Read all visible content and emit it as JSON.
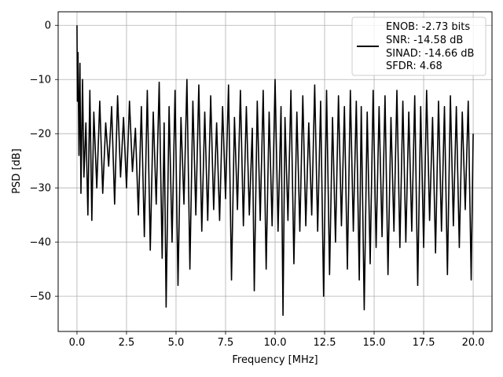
{
  "chart_data": {
    "type": "line",
    "title": "",
    "xlabel": "Frequency [MHz]",
    "ylabel": "PSD [dB]",
    "xlim": [
      -0.95,
      20.95
    ],
    "ylim": [
      -56.5,
      2.5
    ],
    "xticks": [
      0.0,
      2.5,
      5.0,
      7.5,
      10.0,
      12.5,
      15.0,
      17.5,
      20.0
    ],
    "xtick_labels": [
      "0.0",
      "2.5",
      "5.0",
      "7.5",
      "10.0",
      "12.5",
      "15.0",
      "17.5",
      "20.0"
    ],
    "yticks": [
      0,
      -10,
      -20,
      -30,
      -40,
      -50
    ],
    "ytick_labels": [
      "0",
      "−10",
      "−20",
      "−30",
      "−40",
      "−50"
    ],
    "grid": true,
    "legend": {
      "placement": "top-right",
      "lines": [
        "ENOB: -2.73 bits",
        "SNR: -14.58 dB",
        "SINAD: -14.66 dB",
        "SFDR: 4.68"
      ]
    },
    "series": [
      {
        "color": "#000000",
        "x": [
          0.0,
          0.02,
          0.05,
          0.1,
          0.15,
          0.2,
          0.28,
          0.35,
          0.45,
          0.55,
          0.65,
          0.75,
          0.85,
          1.0,
          1.15,
          1.3,
          1.45,
          1.6,
          1.75,
          1.9,
          2.05,
          2.2,
          2.35,
          2.5,
          2.65,
          2.8,
          2.95,
          3.1,
          3.25,
          3.4,
          3.55,
          3.7,
          3.85,
          4.0,
          4.15,
          4.3,
          4.4,
          4.5,
          4.65,
          4.8,
          4.95,
          5.1,
          5.25,
          5.4,
          5.55,
          5.7,
          5.85,
          6.0,
          6.15,
          6.3,
          6.45,
          6.6,
          6.75,
          6.9,
          7.05,
          7.2,
          7.35,
          7.5,
          7.65,
          7.8,
          7.95,
          8.1,
          8.25,
          8.4,
          8.55,
          8.7,
          8.85,
          8.95,
          9.1,
          9.25,
          9.4,
          9.55,
          9.7,
          9.85,
          10.0,
          10.15,
          10.3,
          10.4,
          10.5,
          10.65,
          10.8,
          10.95,
          11.1,
          11.25,
          11.4,
          11.55,
          11.7,
          11.85,
          12.0,
          12.15,
          12.3,
          12.45,
          12.6,
          12.75,
          12.9,
          13.05,
          13.2,
          13.35,
          13.5,
          13.65,
          13.8,
          13.95,
          14.1,
          14.25,
          14.35,
          14.5,
          14.65,
          14.8,
          14.95,
          15.1,
          15.25,
          15.4,
          15.55,
          15.7,
          15.85,
          16.0,
          16.15,
          16.3,
          16.45,
          16.6,
          16.75,
          16.9,
          17.05,
          17.2,
          17.35,
          17.5,
          17.65,
          17.8,
          17.95,
          18.1,
          18.25,
          18.4,
          18.55,
          18.7,
          18.85,
          19.0,
          19.15,
          19.3,
          19.45,
          19.6,
          19.75,
          19.9,
          20.0
        ],
        "y": [
          0.0,
          -14.0,
          -5.0,
          -24.0,
          -7.0,
          -31.0,
          -10.0,
          -28.0,
          -18.0,
          -35.0,
          -12.0,
          -36.0,
          -16.0,
          -30.0,
          -14.0,
          -31.0,
          -18.0,
          -26.0,
          -15.0,
          -33.0,
          -13.0,
          -28.0,
          -17.0,
          -30.0,
          -14.0,
          -27.0,
          -19.0,
          -35.0,
          -15.0,
          -39.0,
          -12.0,
          -41.5,
          -16.0,
          -33.0,
          -10.5,
          -43.0,
          -18.0,
          -52.0,
          -15.0,
          -40.0,
          -12.0,
          -48.0,
          -17.0,
          -33.0,
          -10.0,
          -45.0,
          -14.0,
          -35.0,
          -11.0,
          -38.0,
          -16.0,
          -36.0,
          -13.0,
          -34.0,
          -18.0,
          -36.0,
          -15.0,
          -32.0,
          -11.0,
          -47.0,
          -17.0,
          -34.0,
          -12.0,
          -37.0,
          -15.0,
          -35.0,
          -19.0,
          -49.0,
          -14.0,
          -36.0,
          -12.0,
          -45.0,
          -16.0,
          -37.0,
          -10.0,
          -38.0,
          -15.0,
          -53.5,
          -17.0,
          -36.0,
          -12.0,
          -44.0,
          -16.0,
          -38.0,
          -13.0,
          -37.0,
          -18.0,
          -35.0,
          -11.0,
          -38.0,
          -14.0,
          -50.0,
          -12.0,
          -46.0,
          -17.0,
          -40.0,
          -13.0,
          -37.0,
          -15.0,
          -45.0,
          -12.0,
          -38.0,
          -14.0,
          -47.0,
          -15.0,
          -52.5,
          -16.0,
          -44.0,
          -12.0,
          -41.0,
          -15.0,
          -39.0,
          -13.0,
          -46.0,
          -17.0,
          -38.0,
          -12.0,
          -41.0,
          -14.0,
          -40.0,
          -16.0,
          -38.0,
          -13.0,
          -48.0,
          -15.0,
          -41.0,
          -12.0,
          -36.0,
          -17.0,
          -42.0,
          -14.0,
          -38.0,
          -15.0,
          -46.0,
          -13.0,
          -37.0,
          -15.0,
          -41.0,
          -16.0,
          -34.0,
          -14.0,
          -47.0,
          -20.0
        ]
      }
    ]
  }
}
